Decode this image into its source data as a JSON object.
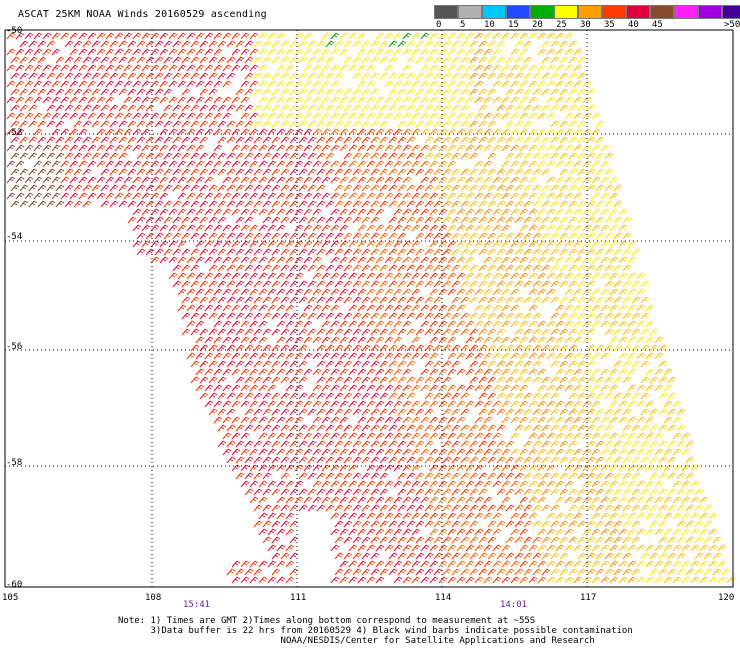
{
  "title": "ASCAT 25KM NOAA Winds 20160529 ascending",
  "legend": {
    "items": [
      {
        "label": "0",
        "color": "#555555"
      },
      {
        "label": "5",
        "color": "#b0b0b0"
      },
      {
        "label": "10",
        "color": "#00c8ff"
      },
      {
        "label": "15",
        "color": "#1e4bff"
      },
      {
        "label": "20",
        "color": "#00b000"
      },
      {
        "label": "25",
        "color": "#ffff00"
      },
      {
        "label": "30",
        "color": "#ffa000"
      },
      {
        "label": "35",
        "color": "#ff3a00"
      },
      {
        "label": "40",
        "color": "#e00040"
      },
      {
        "label": "45",
        "color": "#8b4a2b"
      },
      {
        "label": "",
        "color": "#ff20ff"
      },
      {
        "label": "",
        "color": "#a000e0"
      },
      {
        "label": ">50 knots",
        "color": "#44009a"
      }
    ]
  },
  "axes": {
    "x_ticks": [
      "105",
      "108",
      "111",
      "114",
      "117",
      "120"
    ],
    "y_ticks": [
      "-52",
      "-54",
      "-56",
      "-58",
      "-60"
    ],
    "y_top_partial": "-50"
  },
  "times": [
    "15:41",
    "14:01"
  ],
  "notes": [
    "Note: 1) Times are GMT 2)Times along bottom correspond to measurement at ~55S",
    "      3)Data buffer is 22 hrs from 20160529 4) Black wind barbs indicate possible contamination",
    "                              NOAA/NESDIS/Center for Satellite Applications and Research"
  ],
  "colors": {
    "grid": "#000000",
    "barb_speeds": [
      "#ffe800",
      "#ffc000",
      "#ff9000",
      "#ff6000",
      "#ff3000",
      "#e8103a",
      "#d0105a",
      "#8b4a2b",
      "#00a000"
    ]
  }
}
